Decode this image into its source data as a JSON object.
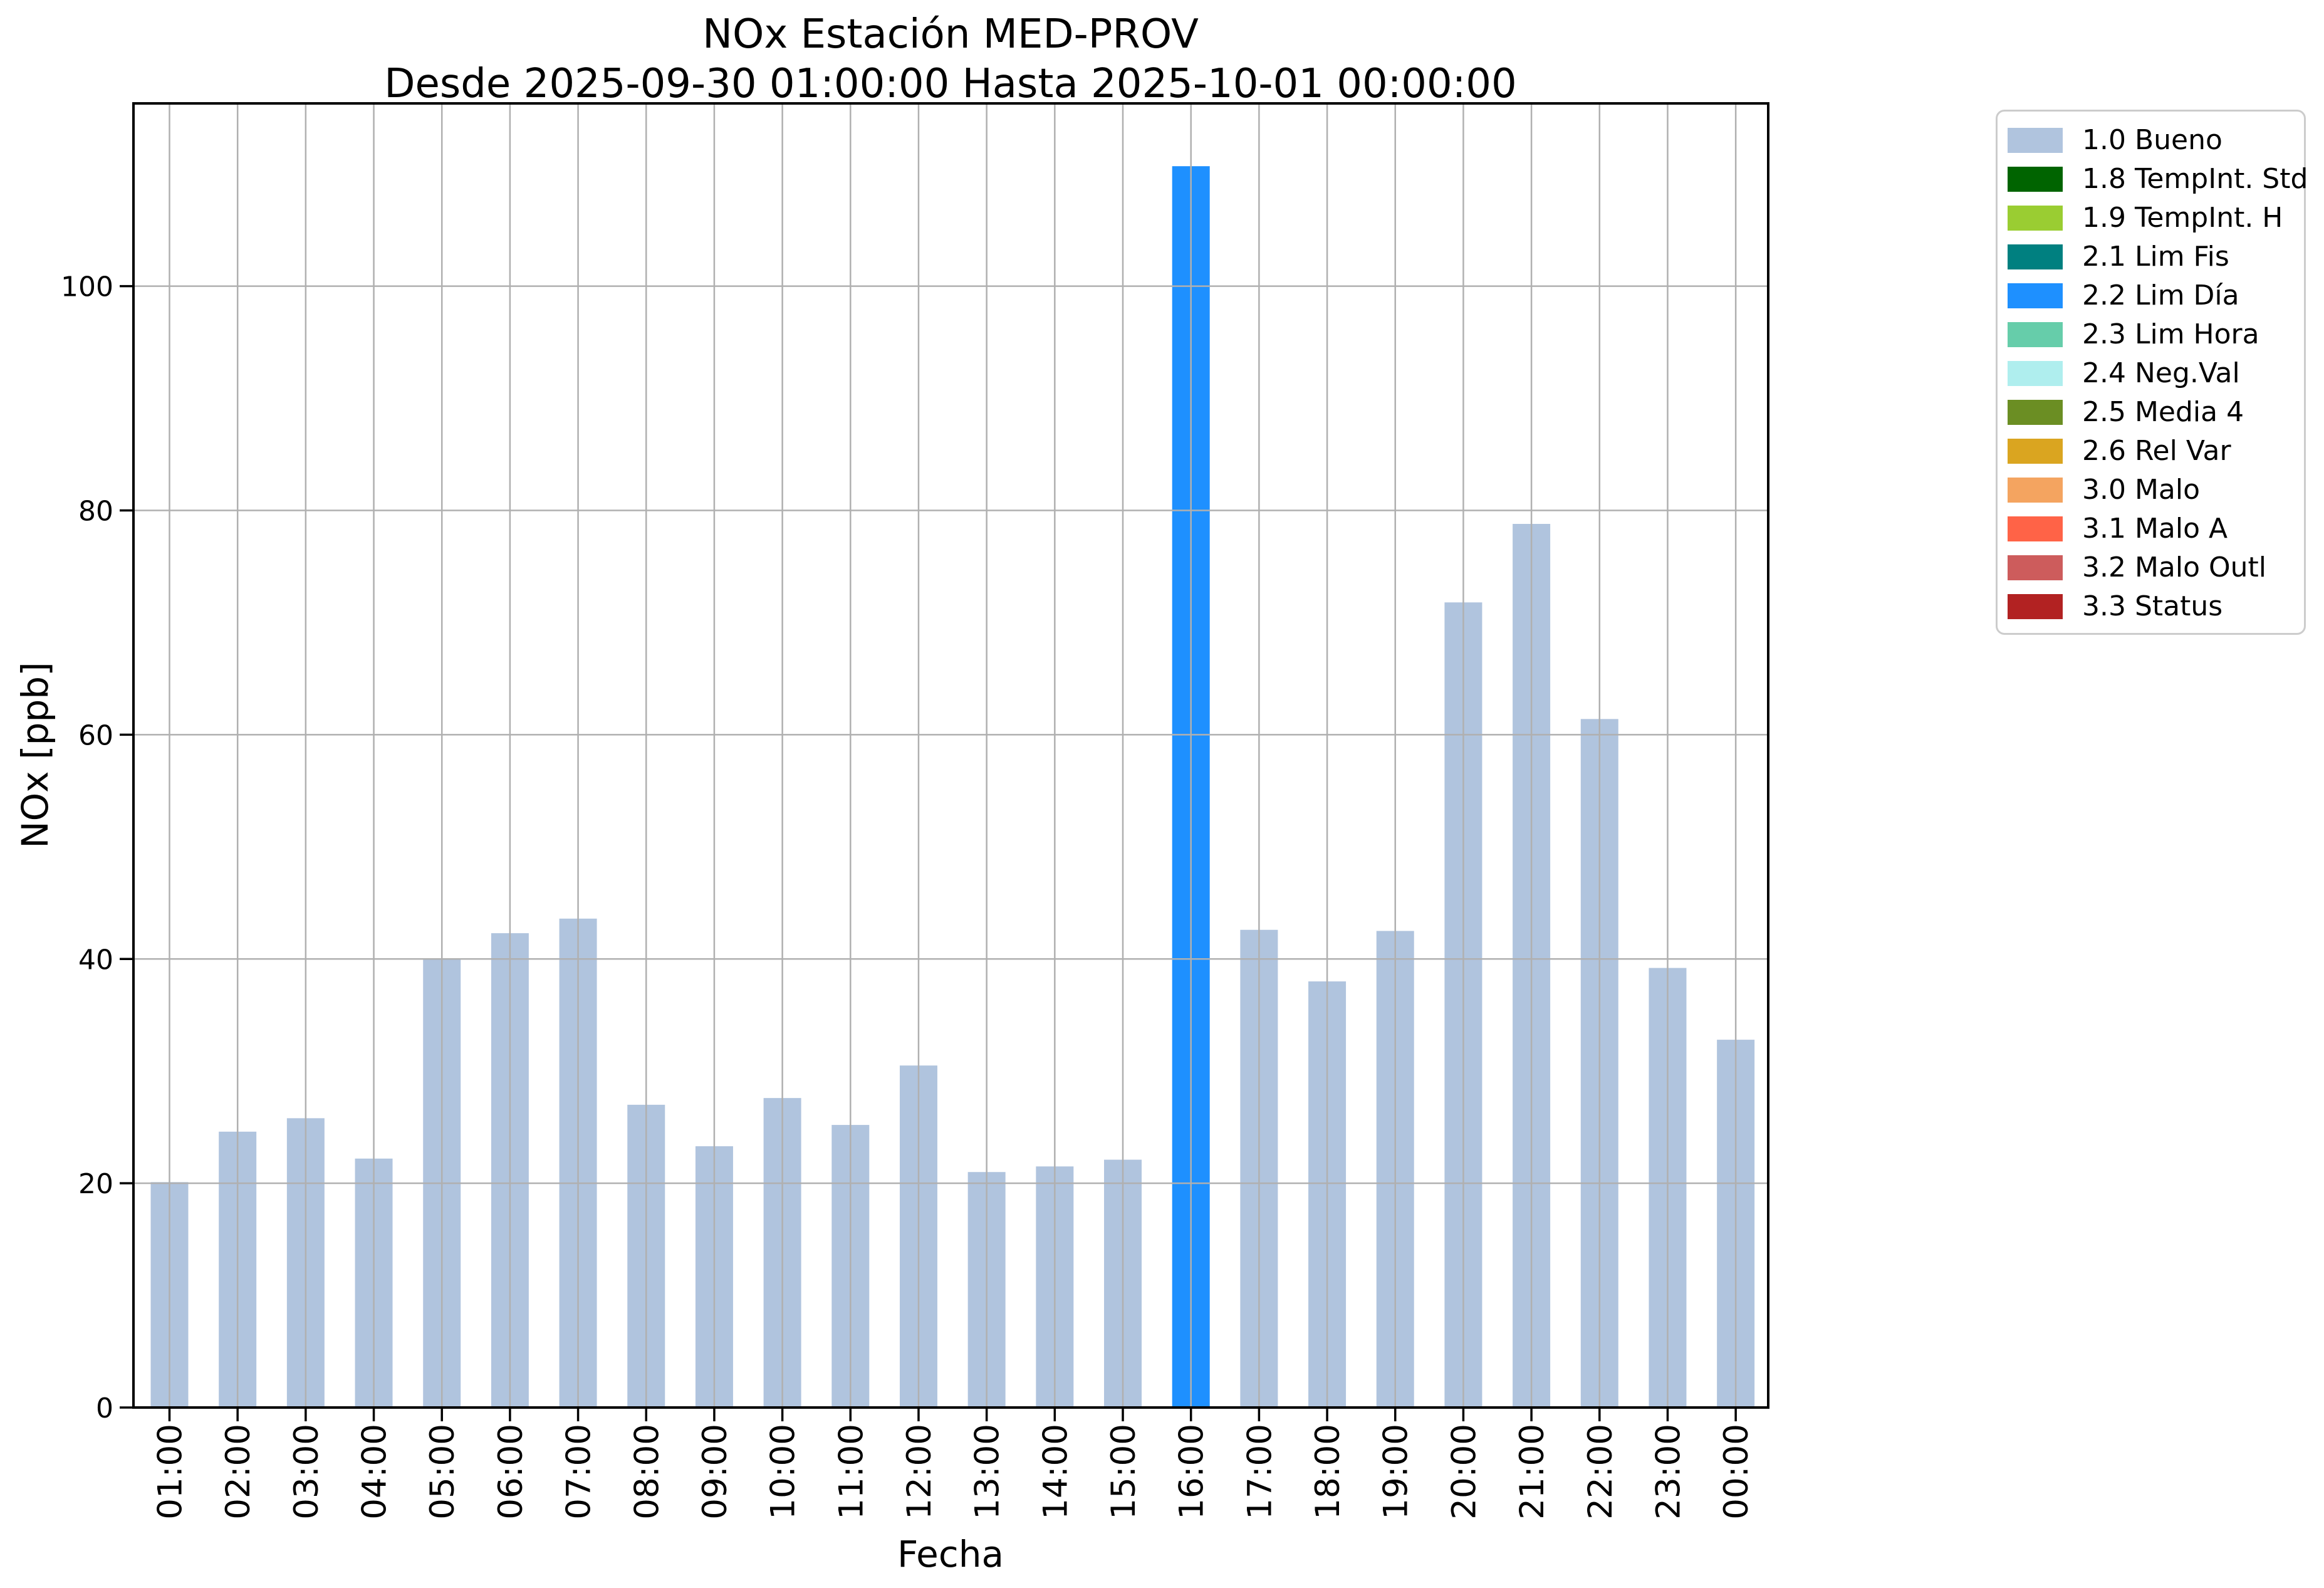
{
  "title": {
    "line1": "NOx Estación MED-PROV",
    "line2": "Desde 2025-09-30 01:00:00 Hasta 2025-10-01 00:00:00"
  },
  "axes": {
    "xlabel": "Fecha",
    "ylabel": "NOx [ppb]"
  },
  "chart_data": {
    "type": "bar",
    "title": "NOx Estación MED-PROV",
    "subtitle": "Desde 2025-09-30 01:00:00 Hasta 2025-10-01 00:00:00",
    "xlabel": "Fecha",
    "ylabel": "NOx [ppb]",
    "categories": [
      "01:00",
      "02:00",
      "03:00",
      "04:00",
      "05:00",
      "06:00",
      "07:00",
      "08:00",
      "09:00",
      "10:00",
      "11:00",
      "12:00",
      "13:00",
      "14:00",
      "15:00",
      "16:00",
      "17:00",
      "18:00",
      "19:00",
      "20:00",
      "21:00",
      "22:00",
      "23:00",
      "00:00"
    ],
    "values": [
      20.1,
      24.6,
      25.8,
      22.2,
      40.0,
      42.3,
      43.6,
      27.0,
      23.3,
      27.6,
      25.2,
      30.5,
      21.0,
      21.5,
      22.1,
      110.7,
      42.6,
      38.0,
      42.5,
      71.8,
      78.8,
      61.4,
      39.2,
      32.8
    ],
    "bar_status": [
      "1.0",
      "1.0",
      "1.0",
      "1.0",
      "1.0",
      "1.0",
      "1.0",
      "1.0",
      "1.0",
      "1.0",
      "1.0",
      "1.0",
      "1.0",
      "1.0",
      "1.0",
      "2.2",
      "1.0",
      "1.0",
      "1.0",
      "1.0",
      "1.0",
      "1.0",
      "1.0",
      "1.0"
    ],
    "yticks": [
      0,
      20,
      40,
      60,
      80,
      100
    ],
    "ylim": [
      0,
      116.3
    ],
    "grid": true,
    "grid_color": "#b0b0b0",
    "legend_position": "outside-upper-right",
    "status_colors": {
      "1.0": "#b0c4de",
      "1.8": "#006400",
      "1.9": "#9acd32",
      "2.1": "#008080",
      "2.2": "#1e90ff",
      "2.3": "#66cdaa",
      "2.4": "#afeeee",
      "2.5": "#6b8e23",
      "2.6": "#daa520",
      "3.0": "#f4a460",
      "3.1": "#ff6347",
      "3.2": "#cd5c5c",
      "3.3": "#b22222"
    }
  },
  "legend": {
    "entries": [
      {
        "label": "1.0 Bueno",
        "color": "#b0c4de"
      },
      {
        "label": "1.8 TempInt. Std",
        "color": "#006400"
      },
      {
        "label": "1.9 TempInt. H",
        "color": "#9acd32"
      },
      {
        "label": "2.1 Lim Fis",
        "color": "#008080"
      },
      {
        "label": "2.2 Lim Día",
        "color": "#1e90ff"
      },
      {
        "label": "2.3 Lim Hora",
        "color": "#66cdaa"
      },
      {
        "label": "2.4 Neg.Val",
        "color": "#afeeee"
      },
      {
        "label": "2.5 Media 4",
        "color": "#6b8e23"
      },
      {
        "label": "2.6 Rel Var",
        "color": "#daa520"
      },
      {
        "label": "3.0 Malo",
        "color": "#f4a460"
      },
      {
        "label": "3.1 Malo A",
        "color": "#ff6347"
      },
      {
        "label": "3.2 Malo Outl",
        "color": "#cd5c5c"
      },
      {
        "label": "3.3 Status",
        "color": "#b22222"
      }
    ]
  }
}
